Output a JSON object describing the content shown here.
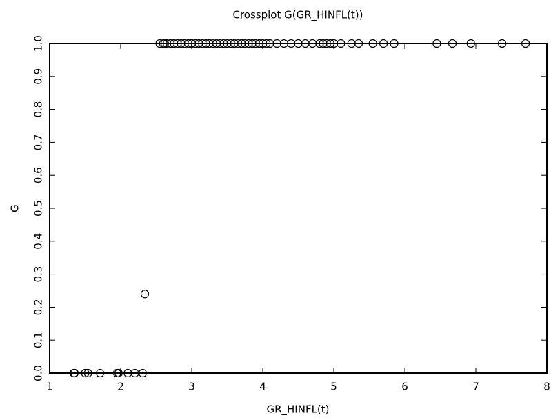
{
  "chart_data": {
    "type": "scatter",
    "title": "Crossplot G(GR_HINFL(t))",
    "x_label": "GR_HINFL(t)",
    "y_label": "G",
    "x": [
      1.34,
      1.35,
      1.5,
      1.54,
      1.71,
      1.95,
      1.97,
      2.1,
      2.2,
      2.31,
      2.34,
      2.55,
      2.6,
      2.62,
      2.65,
      2.7,
      2.75,
      2.8,
      2.85,
      2.9,
      2.95,
      3.0,
      3.05,
      3.1,
      3.15,
      3.2,
      3.25,
      3.3,
      3.35,
      3.4,
      3.45,
      3.5,
      3.55,
      3.6,
      3.65,
      3.7,
      3.75,
      3.8,
      3.85,
      3.9,
      3.95,
      4.0,
      4.05,
      4.1,
      4.2,
      4.3,
      4.4,
      4.5,
      4.6,
      4.7,
      4.8,
      4.85,
      4.9,
      4.95,
      5.0,
      5.1,
      5.25,
      5.35,
      5.55,
      5.7,
      5.85,
      6.45,
      6.67,
      6.93,
      7.37,
      7.7
    ],
    "values": [
      0,
      0,
      0,
      0,
      0,
      0,
      0,
      0,
      0,
      0,
      0.24,
      1,
      1,
      1,
      1,
      1,
      1,
      1,
      1,
      1,
      1,
      1,
      1,
      1,
      1,
      1,
      1,
      1,
      1,
      1,
      1,
      1,
      1,
      1,
      1,
      1,
      1,
      1,
      1,
      1,
      1,
      1,
      1,
      1,
      1,
      1,
      1,
      1,
      1,
      1,
      1,
      1,
      1,
      1,
      1,
      1,
      1,
      1,
      1,
      1,
      1,
      1,
      1,
      1,
      1,
      1
    ],
    "color": "#000000",
    "xlim": [
      1,
      8
    ],
    "xticks": [
      1,
      2,
      3,
      4,
      5,
      6,
      7,
      8
    ],
    "ylim": [
      0,
      1
    ],
    "yticks": [
      {
        "value": 0,
        "label": "0.0"
      },
      {
        "value": 0.1,
        "label": "0.1"
      },
      {
        "value": 0.2,
        "label": "0.2"
      },
      {
        "value": 0.3,
        "label": "0.3"
      },
      {
        "value": 0.4,
        "label": "0.4"
      },
      {
        "value": 0.5,
        "label": "0.5"
      },
      {
        "value": 0.6,
        "label": "0.6"
      },
      {
        "value": 0.7,
        "label": "0.7"
      },
      {
        "value": 0.8,
        "label": "0.8"
      },
      {
        "value": 0.9,
        "label": "0.9"
      },
      {
        "value": 1,
        "label": "1.0"
      }
    ],
    "grid": false
  }
}
